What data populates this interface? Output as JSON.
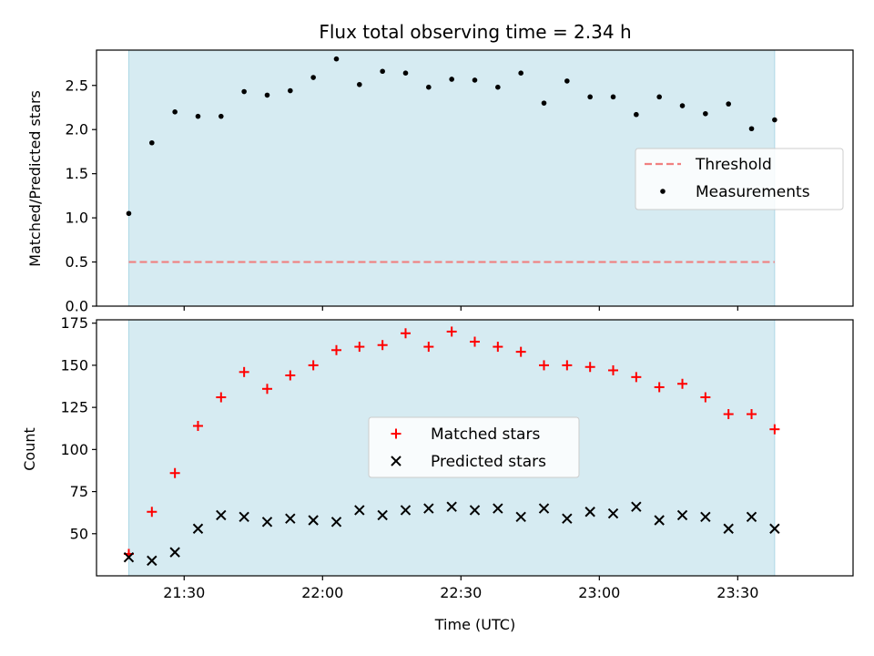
{
  "title": "Flux total observing time = 2.34 h",
  "colors": {
    "shade": "#add8e6",
    "threshold": "#f08080",
    "matched": "#ff0000",
    "predicted": "#000000",
    "measurement": "#000000"
  },
  "chart_data": [
    {
      "type": "scatter",
      "panel": "top",
      "ylabel": "Matched/Predicted stars",
      "ylim": [
        0,
        2.9
      ],
      "yticks": [
        "0.0",
        "0.5",
        "1.0",
        "1.5",
        "2.0",
        "2.5"
      ],
      "xlim": [
        "21:11",
        "23:55"
      ],
      "shaded_interval": [
        "21:18",
        "23:38"
      ],
      "threshold": 0.5,
      "x": [
        "21:18",
        "21:23",
        "21:28",
        "21:33",
        "21:38",
        "21:43",
        "21:48",
        "21:53",
        "21:58",
        "22:03",
        "22:08",
        "22:13",
        "22:18",
        "22:23",
        "22:28",
        "22:33",
        "22:38",
        "22:43",
        "22:48",
        "22:53",
        "22:58",
        "23:03",
        "23:08",
        "23:13",
        "23:18",
        "23:23",
        "23:28",
        "23:33",
        "23:38"
      ],
      "series": [
        {
          "name": "Measurements",
          "values": [
            1.05,
            1.85,
            2.2,
            2.15,
            2.15,
            2.43,
            2.39,
            2.44,
            2.59,
            2.8,
            2.51,
            2.66,
            2.64,
            2.48,
            2.57,
            2.56,
            2.48,
            2.64,
            2.3,
            2.55,
            2.37,
            2.37,
            2.17,
            2.37,
            2.27,
            2.18,
            2.29,
            2.01,
            2.11
          ]
        }
      ],
      "legend": {
        "position": "center-right",
        "entries": [
          "Threshold",
          "Measurements"
        ]
      }
    },
    {
      "type": "scatter",
      "panel": "bottom",
      "ylabel": "Count",
      "xlabel": "Time (UTC)",
      "ylim": [
        25,
        177
      ],
      "yticks": [
        "50",
        "75",
        "100",
        "125",
        "150",
        "175"
      ],
      "xticks": [
        "21:30",
        "22:00",
        "22:30",
        "23:00",
        "23:30"
      ],
      "xlim": [
        "21:11",
        "23:55"
      ],
      "shaded_interval": [
        "21:18",
        "23:38"
      ],
      "x": [
        "21:18",
        "21:23",
        "21:28",
        "21:33",
        "21:38",
        "21:43",
        "21:48",
        "21:53",
        "21:58",
        "22:03",
        "22:08",
        "22:13",
        "22:18",
        "22:23",
        "22:28",
        "22:33",
        "22:38",
        "22:43",
        "22:48",
        "22:53",
        "22:58",
        "23:03",
        "23:08",
        "23:13",
        "23:18",
        "23:23",
        "23:28",
        "23:33",
        "23:38"
      ],
      "series": [
        {
          "name": "Matched stars",
          "marker": "+",
          "values": [
            38,
            63,
            86,
            114,
            131,
            146,
            136,
            144,
            150,
            159,
            161,
            162,
            169,
            161,
            170,
            164,
            161,
            158,
            150,
            150,
            149,
            147,
            143,
            137,
            139,
            131,
            121,
            121,
            112
          ]
        },
        {
          "name": "Predicted stars",
          "marker": "x",
          "values": [
            36,
            34,
            39,
            53,
            61,
            60,
            57,
            59,
            58,
            57,
            64,
            61,
            64,
            65,
            66,
            64,
            65,
            60,
            65,
            59,
            63,
            62,
            66,
            58,
            61,
            60,
            53,
            60,
            53
          ]
        }
      ],
      "legend": {
        "position": "center",
        "entries": [
          "Matched stars",
          "Predicted stars"
        ]
      }
    }
  ]
}
